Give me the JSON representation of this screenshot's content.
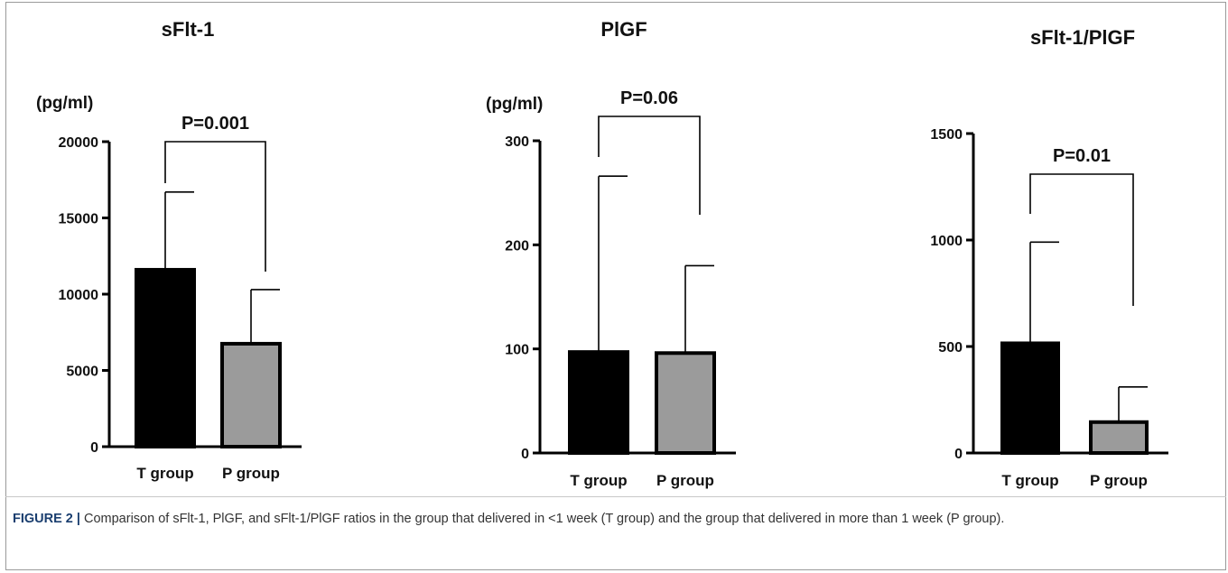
{
  "figure": {
    "caption_label": "FIGURE 2 |",
    "caption_text": " Comparison of sFlt-1, PlGF, and sFlt-1/PlGF ratios in the group that delivered in <1 week (T group) and the group that delivered in more than 1 week (P group)."
  },
  "colors": {
    "t_group": "#000000",
    "p_group": "#9b9b9b",
    "axis": "#000000"
  },
  "chart_data": [
    {
      "type": "bar",
      "title": "sFlt-1",
      "ylabel": "(pg/ml)",
      "ylim": [
        0,
        20000
      ],
      "yticks": [
        0,
        5000,
        10000,
        15000,
        20000
      ],
      "categories": [
        "T group",
        "P group"
      ],
      "values": [
        11600,
        6750
      ],
      "error_upper": [
        16700,
        10300
      ],
      "annotation": "P=0.001"
    },
    {
      "type": "bar",
      "title": "PlGF",
      "ylabel": "(pg/ml)",
      "ylim": [
        0,
        300
      ],
      "yticks": [
        0,
        100,
        200,
        300
      ],
      "categories": [
        "T group",
        "P group"
      ],
      "values": [
        97,
        96
      ],
      "error_upper": [
        266,
        180
      ],
      "annotation": "P=0.06"
    },
    {
      "type": "bar",
      "title": "sFlt-1/PlGF",
      "ylabel": "",
      "ylim": [
        0,
        1500
      ],
      "yticks": [
        0,
        500,
        1000,
        1500
      ],
      "categories": [
        "T group",
        "P group"
      ],
      "values": [
        515,
        145
      ],
      "error_upper": [
        990,
        310
      ],
      "annotation": "P=0.01"
    }
  ]
}
